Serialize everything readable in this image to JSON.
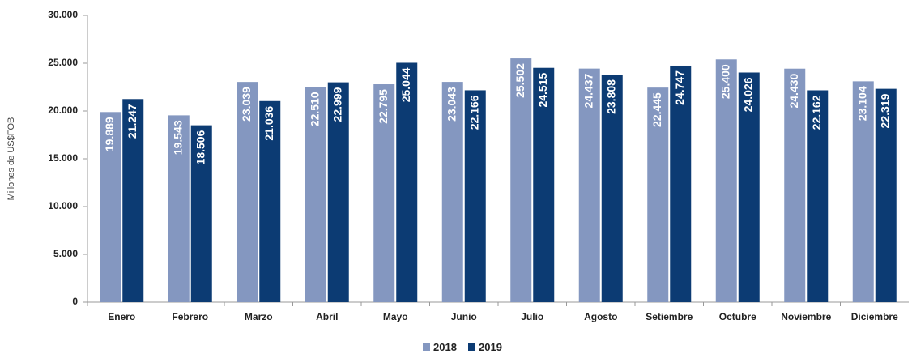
{
  "chart_data": {
    "type": "bar",
    "y_label": "Millones de US$FOB",
    "categories": [
      "Enero",
      "Febrero",
      "Marzo",
      "Abril",
      "Mayo",
      "Junio",
      "Julio",
      "Agosto",
      "Setiembre",
      "Octubre",
      "Noviembre",
      "Diciembre"
    ],
    "series": [
      {
        "name": "2018",
        "color": "#8497c0",
        "values": [
          19889,
          19543,
          23039,
          22510,
          22795,
          23043,
          25502,
          24437,
          22445,
          25400,
          24430,
          23104
        ],
        "value_labels": [
          "19.889",
          "19.543",
          "23.039",
          "22.510",
          "22.795",
          "23.043",
          "25.502",
          "24.437",
          "22.445",
          "25.400",
          "24.430",
          "23.104"
        ]
      },
      {
        "name": "2019",
        "color": "#0c3b73",
        "values": [
          21247,
          18506,
          21036,
          22999,
          25044,
          22166,
          24515,
          23808,
          24747,
          24026,
          22162,
          22319
        ],
        "value_labels": [
          "21.247",
          "18.506",
          "21.036",
          "22.999",
          "25.044",
          "22.166",
          "24.515",
          "23.808",
          "24.747",
          "24.026",
          "22.162",
          "22.319"
        ]
      }
    ],
    "ylim": [
      0,
      30000
    ],
    "yticks": [
      0,
      {
        "value": 5000,
        "label": "5.000"
      },
      {
        "value": 10000,
        "label": "10.000"
      },
      {
        "value": 15000,
        "label": "15.000"
      },
      {
        "value": 20000,
        "label": "20.000"
      },
      {
        "value": 25000,
        "label": "25.000"
      },
      {
        "value": 30000,
        "label": "30.000"
      }
    ],
    "legend": "bottom"
  }
}
